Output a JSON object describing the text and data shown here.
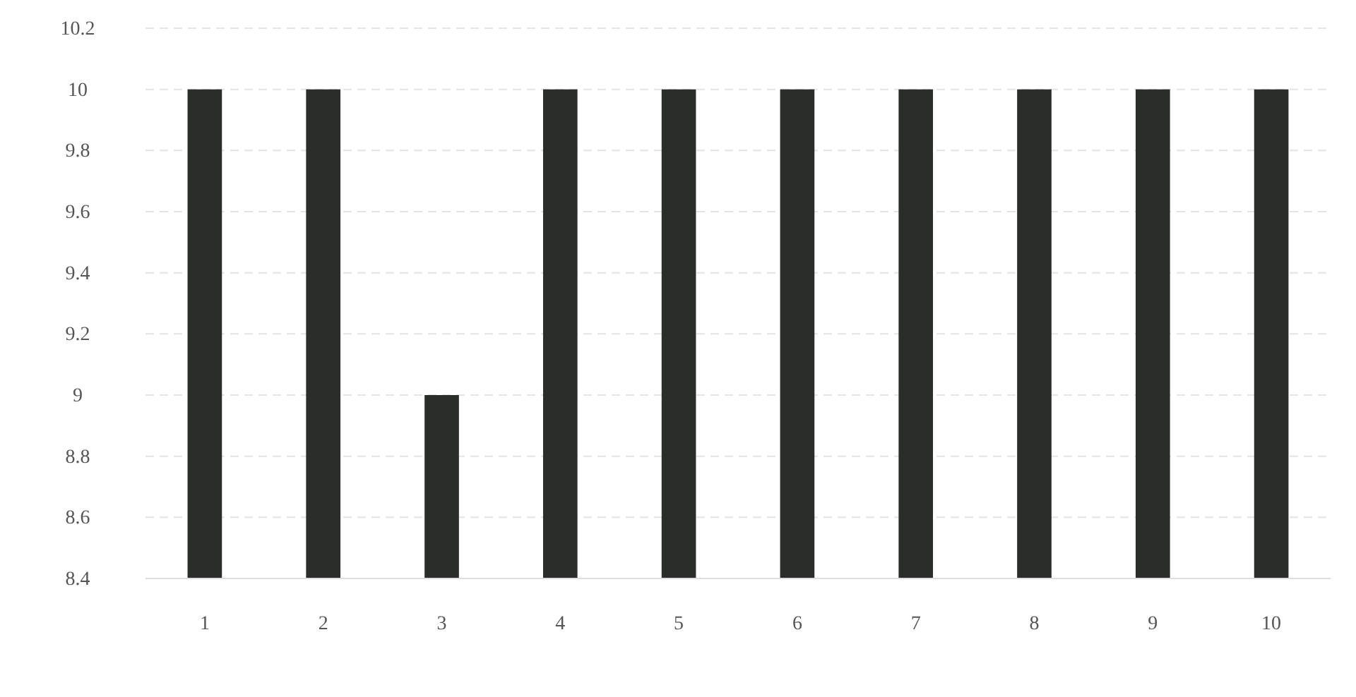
{
  "chart_data": {
    "type": "bar",
    "categories": [
      "1",
      "2",
      "3",
      "4",
      "5",
      "6",
      "7",
      "8",
      "9",
      "10"
    ],
    "values": [
      10,
      10,
      9,
      10,
      10,
      10,
      10,
      10,
      10,
      10
    ],
    "color": "#2b2d2b",
    "ylim": [
      8.4,
      10.2
    ],
    "yticks": [
      8.4,
      8.6,
      8.8,
      9,
      9.2,
      9.4,
      9.6,
      9.8,
      10,
      10.2
    ],
    "grid": "y"
  }
}
